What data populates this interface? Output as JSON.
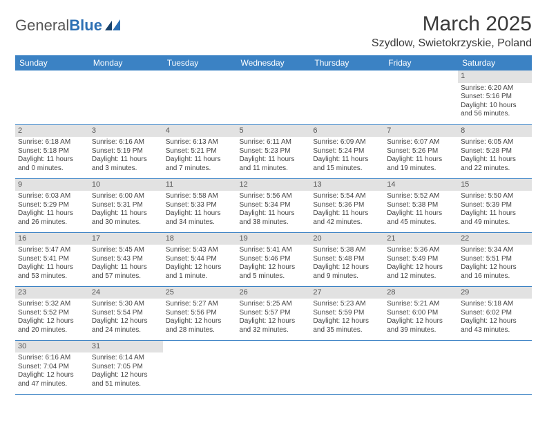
{
  "logo": {
    "part1": "General",
    "part2": "Blue"
  },
  "title": "March 2025",
  "location": "Szydlow, Swietokrzyskie, Poland",
  "columns": [
    "Sunday",
    "Monday",
    "Tuesday",
    "Wednesday",
    "Thursday",
    "Friday",
    "Saturday"
  ],
  "header_bg": "#3b82c4",
  "header_fg": "#ffffff",
  "daynum_bg": "#e2e2e2",
  "rule_color": "#3b82c4",
  "weeks": [
    [
      null,
      null,
      null,
      null,
      null,
      null,
      {
        "n": "1",
        "sunrise": "6:20 AM",
        "sunset": "5:16 PM",
        "daylight": "10 hours and 56 minutes."
      }
    ],
    [
      {
        "n": "2",
        "sunrise": "6:18 AM",
        "sunset": "5:18 PM",
        "daylight": "11 hours and 0 minutes."
      },
      {
        "n": "3",
        "sunrise": "6:16 AM",
        "sunset": "5:19 PM",
        "daylight": "11 hours and 3 minutes."
      },
      {
        "n": "4",
        "sunrise": "6:13 AM",
        "sunset": "5:21 PM",
        "daylight": "11 hours and 7 minutes."
      },
      {
        "n": "5",
        "sunrise": "6:11 AM",
        "sunset": "5:23 PM",
        "daylight": "11 hours and 11 minutes."
      },
      {
        "n": "6",
        "sunrise": "6:09 AM",
        "sunset": "5:24 PM",
        "daylight": "11 hours and 15 minutes."
      },
      {
        "n": "7",
        "sunrise": "6:07 AM",
        "sunset": "5:26 PM",
        "daylight": "11 hours and 19 minutes."
      },
      {
        "n": "8",
        "sunrise": "6:05 AM",
        "sunset": "5:28 PM",
        "daylight": "11 hours and 22 minutes."
      }
    ],
    [
      {
        "n": "9",
        "sunrise": "6:03 AM",
        "sunset": "5:29 PM",
        "daylight": "11 hours and 26 minutes."
      },
      {
        "n": "10",
        "sunrise": "6:00 AM",
        "sunset": "5:31 PM",
        "daylight": "11 hours and 30 minutes."
      },
      {
        "n": "11",
        "sunrise": "5:58 AM",
        "sunset": "5:33 PM",
        "daylight": "11 hours and 34 minutes."
      },
      {
        "n": "12",
        "sunrise": "5:56 AM",
        "sunset": "5:34 PM",
        "daylight": "11 hours and 38 minutes."
      },
      {
        "n": "13",
        "sunrise": "5:54 AM",
        "sunset": "5:36 PM",
        "daylight": "11 hours and 42 minutes."
      },
      {
        "n": "14",
        "sunrise": "5:52 AM",
        "sunset": "5:38 PM",
        "daylight": "11 hours and 45 minutes."
      },
      {
        "n": "15",
        "sunrise": "5:50 AM",
        "sunset": "5:39 PM",
        "daylight": "11 hours and 49 minutes."
      }
    ],
    [
      {
        "n": "16",
        "sunrise": "5:47 AM",
        "sunset": "5:41 PM",
        "daylight": "11 hours and 53 minutes."
      },
      {
        "n": "17",
        "sunrise": "5:45 AM",
        "sunset": "5:43 PM",
        "daylight": "11 hours and 57 minutes."
      },
      {
        "n": "18",
        "sunrise": "5:43 AM",
        "sunset": "5:44 PM",
        "daylight": "12 hours and 1 minute."
      },
      {
        "n": "19",
        "sunrise": "5:41 AM",
        "sunset": "5:46 PM",
        "daylight": "12 hours and 5 minutes."
      },
      {
        "n": "20",
        "sunrise": "5:38 AM",
        "sunset": "5:48 PM",
        "daylight": "12 hours and 9 minutes."
      },
      {
        "n": "21",
        "sunrise": "5:36 AM",
        "sunset": "5:49 PM",
        "daylight": "12 hours and 12 minutes."
      },
      {
        "n": "22",
        "sunrise": "5:34 AM",
        "sunset": "5:51 PM",
        "daylight": "12 hours and 16 minutes."
      }
    ],
    [
      {
        "n": "23",
        "sunrise": "5:32 AM",
        "sunset": "5:52 PM",
        "daylight": "12 hours and 20 minutes."
      },
      {
        "n": "24",
        "sunrise": "5:30 AM",
        "sunset": "5:54 PM",
        "daylight": "12 hours and 24 minutes."
      },
      {
        "n": "25",
        "sunrise": "5:27 AM",
        "sunset": "5:56 PM",
        "daylight": "12 hours and 28 minutes."
      },
      {
        "n": "26",
        "sunrise": "5:25 AM",
        "sunset": "5:57 PM",
        "daylight": "12 hours and 32 minutes."
      },
      {
        "n": "27",
        "sunrise": "5:23 AM",
        "sunset": "5:59 PM",
        "daylight": "12 hours and 35 minutes."
      },
      {
        "n": "28",
        "sunrise": "5:21 AM",
        "sunset": "6:00 PM",
        "daylight": "12 hours and 39 minutes."
      },
      {
        "n": "29",
        "sunrise": "5:18 AM",
        "sunset": "6:02 PM",
        "daylight": "12 hours and 43 minutes."
      }
    ],
    [
      {
        "n": "30",
        "sunrise": "6:16 AM",
        "sunset": "7:04 PM",
        "daylight": "12 hours and 47 minutes."
      },
      {
        "n": "31",
        "sunrise": "6:14 AM",
        "sunset": "7:05 PM",
        "daylight": "12 hours and 51 minutes."
      },
      null,
      null,
      null,
      null,
      null
    ]
  ],
  "labels": {
    "sunrise": "Sunrise:",
    "sunset": "Sunset:",
    "daylight": "Daylight:"
  }
}
